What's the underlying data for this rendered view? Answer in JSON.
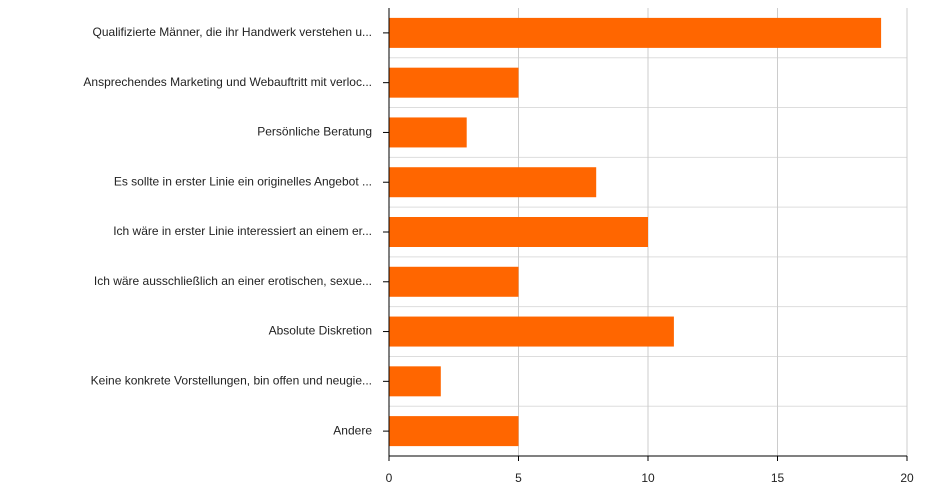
{
  "chart_data": {
    "type": "bar",
    "orientation": "horizontal",
    "categories": [
      "Qualifizierte Männer, die ihr Handwerk verstehen u...",
      "Ansprechendes Marketing und Webauftritt mit verloc...",
      "Persönliche Beratung",
      "Es sollte in erster Linie ein originelles Angebot ...",
      "Ich wäre in erster Linie interessiert an einem er...",
      "Ich wäre ausschließlich an einer erotischen, sexue...",
      "Absolute Diskretion",
      "Keine konkrete Vorstellungen, bin offen und neugie...",
      "Andere"
    ],
    "values": [
      19,
      5,
      3,
      8,
      10,
      5,
      11,
      2,
      5
    ],
    "color": "#ff6600",
    "xlim": [
      0,
      20
    ],
    "xticks": [
      0,
      5,
      10,
      15,
      20
    ],
    "grid": true
  }
}
